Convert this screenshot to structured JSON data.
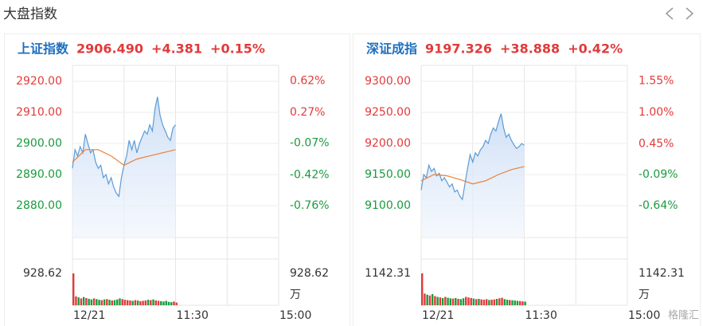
{
  "header": {
    "title": "大盘指数",
    "watermark": "格隆汇"
  },
  "panels": [
    {
      "name": "上证指数",
      "price": "2906.490",
      "change": "+4.381",
      "pct": "+0.15%",
      "name_color": "#1f6fbf",
      "quote_color": "#e23a3a",
      "chart": {
        "type": "line",
        "color": "#5b9bd5",
        "x": [
          0,
          3,
          6,
          9,
          12,
          15,
          18,
          21,
          24,
          27,
          30,
          33,
          36,
          39,
          42,
          45,
          48,
          51,
          54,
          57,
          60,
          63,
          66,
          69,
          72,
          75,
          78,
          81,
          84,
          87,
          90,
          93,
          96,
          99,
          102,
          105,
          108,
          111,
          114,
          117,
          120
        ],
        "values": [
          2892,
          2898,
          2896,
          2899,
          2897,
          2903,
          2900,
          2897,
          2898,
          2894,
          2892,
          2893,
          2889,
          2890,
          2887,
          2889,
          2886,
          2884,
          2883,
          2889,
          2893,
          2896,
          2901,
          2898,
          2901,
          2897,
          2900,
          2902,
          2904,
          2903,
          2906,
          2904,
          2911,
          2915,
          2909,
          2906,
          2904,
          2902,
          2901,
          2905,
          2906
        ],
        "avg": {
          "color": "#e8803a",
          "x": [
            0,
            15,
            30,
            45,
            60,
            75,
            90,
            105,
            120
          ],
          "values": [
            2894,
            2898,
            2898,
            2896,
            2893,
            2895,
            2896,
            2897,
            2898
          ]
        },
        "xlim": [
          0,
          240
        ],
        "xticks": [
          {
            "value": 0,
            "label": "12/21"
          },
          {
            "value": 120,
            "label": "11:30"
          },
          {
            "value": 240,
            "label": "15:00"
          }
        ],
        "xgrid": [
          0,
          60,
          120,
          180,
          240
        ],
        "ylim": [
          2869.74,
          2925.13
        ],
        "yticks": [
          {
            "value": 2920,
            "label": "2920.00",
            "color": "#e23a3a"
          },
          {
            "value": 2910,
            "label": "2910.00",
            "color": "#e23a3a"
          },
          {
            "value": 2900,
            "label": "2900.00",
            "color": "#1a9b3d"
          },
          {
            "value": 2890,
            "label": "2890.00",
            "color": "#1a9b3d"
          },
          {
            "value": 2880,
            "label": "2880.00",
            "color": "#1a9b3d"
          }
        ],
        "y2lim": [
          -1.115,
          0.793
        ],
        "y2ticks": [
          {
            "value": 0.62,
            "label": "0.62%",
            "color": "#e23a3a"
          },
          {
            "value": 0.27,
            "label": "0.27%",
            "color": "#e23a3a"
          },
          {
            "value": -0.07,
            "label": "-0.07%",
            "color": "#1a9b3d"
          },
          {
            "value": -0.42,
            "label": "-0.42%",
            "color": "#1a9b3d"
          },
          {
            "value": -0.76,
            "label": "-0.76%",
            "color": "#1a9b3d"
          }
        ],
        "volume": {
          "values": [
            928,
            260,
            230,
            200,
            240,
            210,
            190,
            170,
            200,
            180,
            160,
            150,
            170,
            180,
            160,
            140,
            150,
            170,
            200,
            180,
            160,
            150,
            140,
            130,
            150,
            140,
            120,
            130,
            140,
            160,
            150,
            170,
            140,
            130,
            120,
            110,
            130,
            100,
            90,
            110,
            80
          ],
          "ylim": [
            0,
            928.62
          ],
          "yticks": [
            928.62
          ],
          "unit": "万",
          "up_color": "#e23a3a",
          "down_color": "#1a9b3d"
        }
      }
    },
    {
      "name": "深证成指",
      "price": "9197.326",
      "change": "+38.888",
      "pct": "+0.42%",
      "name_color": "#1f6fbf",
      "quote_color": "#e23a3a",
      "chart": {
        "type": "line",
        "color": "#5b9bd5",
        "x": [
          0,
          3,
          6,
          9,
          12,
          15,
          18,
          21,
          24,
          27,
          30,
          33,
          36,
          39,
          42,
          45,
          48,
          51,
          54,
          57,
          60,
          63,
          66,
          69,
          72,
          75,
          78,
          81,
          84,
          87,
          90,
          93,
          96,
          99,
          102,
          105,
          108,
          111,
          114,
          117,
          120
        ],
        "values": [
          9125,
          9150,
          9145,
          9165,
          9155,
          9160,
          9148,
          9152,
          9140,
          9145,
          9138,
          9130,
          9135,
          9122,
          9125,
          9115,
          9110,
          9135,
          9160,
          9182,
          9170,
          9185,
          9180,
          9190,
          9195,
          9205,
          9200,
          9215,
          9225,
          9220,
          9235,
          9248,
          9225,
          9210,
          9215,
          9205,
          9198,
          9192,
          9195,
          9200,
          9197
        ],
        "avg": {
          "color": "#e8803a",
          "x": [
            0,
            15,
            30,
            45,
            60,
            75,
            90,
            105,
            120
          ],
          "values": [
            9140,
            9150,
            9148,
            9142,
            9135,
            9140,
            9150,
            9158,
            9163
          ]
        },
        "xlim": [
          0,
          240
        ],
        "xticks": [
          {
            "value": 0,
            "label": "12/21"
          },
          {
            "value": 120,
            "label": "11:30"
          },
          {
            "value": 240,
            "label": "15:00"
          }
        ],
        "xgrid": [
          0,
          60,
          120,
          180,
          240
        ],
        "ylim": [
          9048.72,
          9325.64
        ],
        "yticks": [
          {
            "value": 9300,
            "label": "9300.00",
            "color": "#e23a3a"
          },
          {
            "value": 9250,
            "label": "9250.00",
            "color": "#e23a3a"
          },
          {
            "value": 9200,
            "label": "9200.00",
            "color": "#e23a3a"
          },
          {
            "value": 9150,
            "label": "9150.00",
            "color": "#1a9b3d"
          },
          {
            "value": 9100,
            "label": "9100.00",
            "color": "#1a9b3d"
          }
        ],
        "y2lim": [
          -1.198,
          1.826
        ],
        "y2ticks": [
          {
            "value": 1.55,
            "label": "1.55%",
            "color": "#e23a3a"
          },
          {
            "value": 1.0,
            "label": "1.00%",
            "color": "#e23a3a"
          },
          {
            "value": 0.45,
            "label": "0.45%",
            "color": "#e23a3a"
          },
          {
            "value": -0.09,
            "label": "-0.09%",
            "color": "#1a9b3d"
          },
          {
            "value": -0.64,
            "label": "-0.64%",
            "color": "#1a9b3d"
          }
        ],
        "volume": {
          "values": [
            1142,
            420,
            380,
            350,
            400,
            330,
            300,
            280,
            260,
            300,
            270,
            250,
            240,
            260,
            230,
            220,
            250,
            300,
            280,
            260,
            240,
            220,
            230,
            210,
            200,
            220,
            190,
            200,
            210,
            230,
            250,
            270,
            220,
            200,
            190,
            180,
            170,
            160,
            150,
            140,
            130
          ],
          "ylim": [
            0,
            1142.31
          ],
          "yticks": [
            1142.31
          ],
          "unit": "万",
          "up_color": "#e23a3a",
          "down_color": "#1a9b3d"
        }
      }
    }
  ]
}
